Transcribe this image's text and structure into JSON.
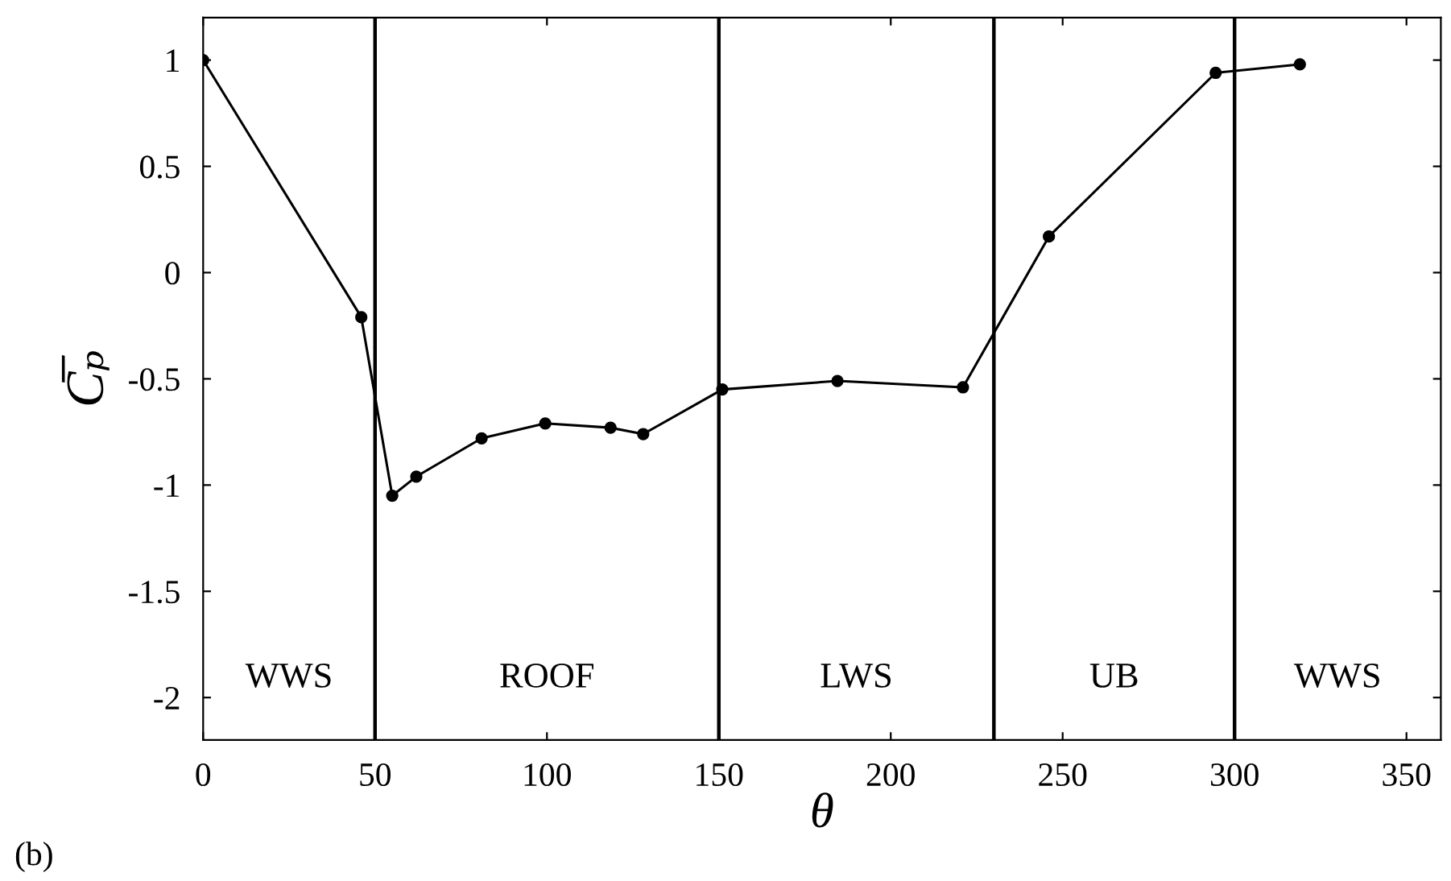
{
  "chart_data": {
    "type": "line",
    "xlabel": "θ",
    "ylabel": "C̅ₚ",
    "x": [
      0,
      46,
      55,
      62,
      81,
      99.5,
      118.5,
      128,
      151,
      184.5,
      221,
      246,
      294.5,
      319
    ],
    "series": [
      {
        "color": "#000000",
        "values": [
          1.0,
          -0.21,
          -1.05,
          -0.96,
          -0.78,
          -0.71,
          -0.73,
          -0.76,
          -0.55,
          -0.51,
          -0.54,
          0.17,
          0.94,
          0.98
        ]
      }
    ],
    "marker": "circle",
    "line_style": "solid",
    "xlim": [
      0,
      360
    ],
    "xticks": [
      0,
      50,
      100,
      150,
      200,
      250,
      300,
      350
    ],
    "ylim": [
      -2.2,
      1.2
    ],
    "yticks": [
      -2,
      -1.5,
      -1,
      -0.5,
      0,
      0.5,
      1
    ],
    "grid": false,
    "ref_lines": [
      {
        "axis": "x",
        "value": 50,
        "color": "#000000"
      },
      {
        "axis": "x",
        "value": 150,
        "color": "#000000"
      },
      {
        "axis": "x",
        "value": 230,
        "color": "#000000"
      },
      {
        "axis": "x",
        "value": 300,
        "color": "#000000"
      }
    ],
    "annotations": [
      "WWS",
      "ROOF",
      "LWS",
      "UB",
      "WWS",
      "(b)"
    ]
  }
}
